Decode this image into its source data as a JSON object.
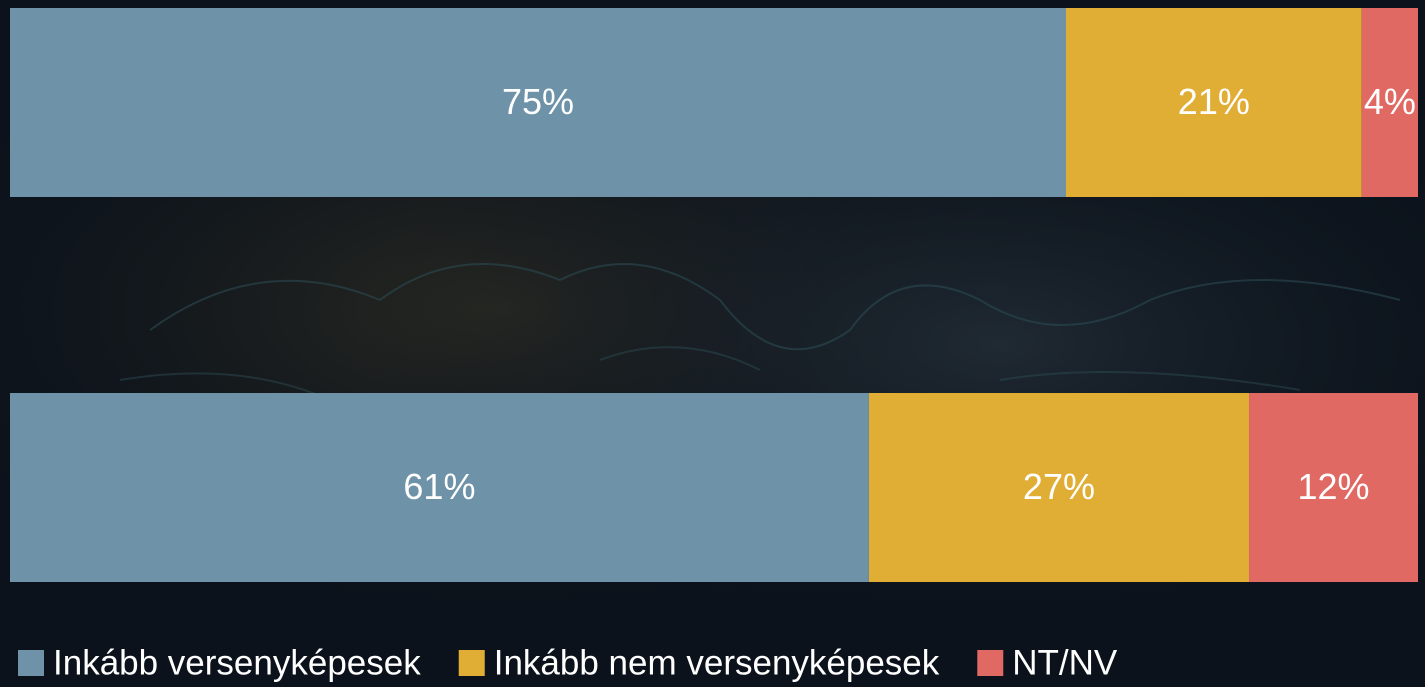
{
  "chart_data": {
    "type": "stacked-bar-horizontal",
    "categories": [
      null,
      null
    ],
    "xlim": [
      0,
      100
    ],
    "series": [
      {
        "name": "Inkább versenyképesek",
        "color": "#6e93a8",
        "values": [
          75,
          61
        ],
        "value_labels": [
          "75%",
          "61%"
        ]
      },
      {
        "name": "Inkább nem versenyképesek",
        "color": "#e0ad35",
        "values": [
          21,
          27
        ],
        "value_labels": [
          "21%",
          "27%"
        ]
      },
      {
        "name": "NT/NV",
        "color": "#e06964",
        "values": [
          4,
          12
        ],
        "value_labels": [
          "4%",
          "12%"
        ]
      }
    ]
  }
}
